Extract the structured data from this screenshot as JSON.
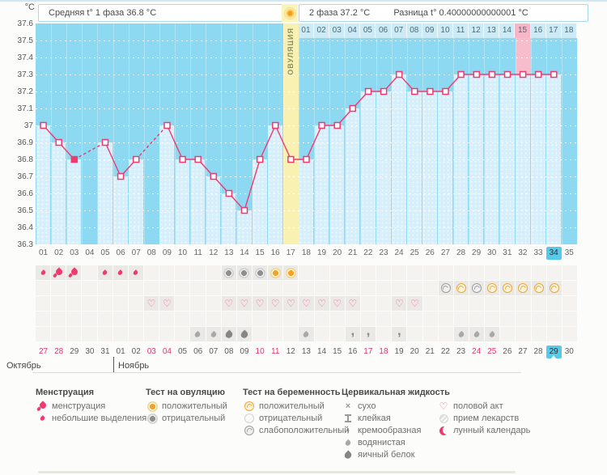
{
  "header": {
    "unit": "°C",
    "avg_phase1_label": "Средняя t° 1 фаза 36.8 °C",
    "phase2_label": "2 фаза 37.2 °C",
    "diff_label": "Разница t° 0.40000000000001 °C"
  },
  "chart_data": {
    "type": "line",
    "ylabel": "°C",
    "ylim": [
      36.3,
      37.6
    ],
    "ytick_step": 0.1,
    "yticks": [
      "37.6",
      "37.5",
      "37.4",
      "37.3",
      "37.2",
      "37.1",
      "37",
      "36.9",
      "36.8",
      "36.7",
      "36.6",
      "36.5",
      "36.4",
      "36.3"
    ],
    "grid": true,
    "x_days": [
      1,
      2,
      3,
      4,
      5,
      6,
      7,
      8,
      9,
      10,
      11,
      12,
      13,
      14,
      15,
      16,
      17,
      18,
      19,
      20,
      21,
      22,
      23,
      24,
      25,
      26,
      27,
      28,
      29,
      30,
      31,
      32,
      33,
      34,
      35
    ],
    "temps": [
      37.0,
      36.9,
      36.8,
      null,
      36.9,
      36.7,
      36.8,
      null,
      37.0,
      36.8,
      36.8,
      36.7,
      36.6,
      36.5,
      36.8,
      37.0,
      36.8,
      36.8,
      37.0,
      37.0,
      37.1,
      37.2,
      37.2,
      37.3,
      37.2,
      37.2,
      37.2,
      37.3,
      37.3,
      37.3,
      37.3,
      37.3,
      37.3,
      37.3,
      null
    ],
    "filled_marker_days": [
      3
    ],
    "ovulation": {
      "day": 17,
      "label": "ОВУЛЯЦИЯ"
    },
    "phase2": {
      "start_day": 18,
      "labels": [
        "01",
        "02",
        "03",
        "04",
        "05",
        "06",
        "07",
        "08",
        "09",
        "10",
        "11",
        "12",
        "13",
        "14",
        "15",
        "16",
        "17",
        "18"
      ],
      "highlight_label": "15"
    },
    "pink_highlight_day": 32,
    "today_day": 34,
    "colors": {
      "line": "#ee3a6e",
      "background": "#8dd9f2",
      "bar": "#d6effa",
      "ovulation_column": "#f8f1b2",
      "pink_column": "#f8bdcd",
      "today_highlight": "#57c9ea",
      "weekend_date": "#e8316b"
    }
  },
  "rows": {
    "day_numbers": [
      "01",
      "02",
      "03",
      "04",
      "05",
      "06",
      "07",
      "08",
      "09",
      "10",
      "11",
      "12",
      "13",
      "14",
      "15",
      "16",
      "17",
      "18",
      "19",
      "20",
      "21",
      "22",
      "23",
      "24",
      "25",
      "26",
      "27",
      "28",
      "29",
      "30",
      "31",
      "32",
      "33",
      "34",
      "35"
    ],
    "icon_rows": [
      {
        "name": "menstruation-and-ovulation-test-row",
        "cells": [
          {
            "day": 1,
            "icon": "m_spot"
          },
          {
            "day": 2,
            "icon": "m_menses"
          },
          {
            "day": 3,
            "icon": "m_menses"
          },
          {
            "day": 5,
            "icon": "m_spot"
          },
          {
            "day": 6,
            "icon": "m_spot"
          },
          {
            "day": 7,
            "icon": "m_spot"
          },
          {
            "day": 13,
            "icon": "ov_neg"
          },
          {
            "day": 14,
            "icon": "ov_neg"
          },
          {
            "day": 15,
            "icon": "ov_neg"
          },
          {
            "day": 16,
            "icon": "ov_pos"
          },
          {
            "day": 17,
            "icon": "ov_pos"
          }
        ]
      },
      {
        "name": "pregnancy-test-row",
        "cells": [
          {
            "day": 27,
            "icon": "pg_weak"
          },
          {
            "day": 28,
            "icon": "pg_pos"
          },
          {
            "day": 29,
            "icon": "pg_weak"
          },
          {
            "day": 30,
            "icon": "pg_pos"
          },
          {
            "day": 31,
            "icon": "pg_pos"
          },
          {
            "day": 32,
            "icon": "pg_pos"
          },
          {
            "day": 33,
            "icon": "pg_pos"
          },
          {
            "day": 34,
            "icon": "pg_pos"
          }
        ]
      },
      {
        "name": "intercourse-row",
        "cells": [
          {
            "day": 8,
            "icon": "heart"
          },
          {
            "day": 9,
            "icon": "heart"
          },
          {
            "day": 13,
            "icon": "heart"
          },
          {
            "day": 14,
            "icon": "heart"
          },
          {
            "day": 15,
            "icon": "heart"
          },
          {
            "day": 16,
            "icon": "heart"
          },
          {
            "day": 17,
            "icon": "heart"
          },
          {
            "day": 18,
            "icon": "heart"
          },
          {
            "day": 19,
            "icon": "heart"
          },
          {
            "day": 20,
            "icon": "heart"
          },
          {
            "day": 21,
            "icon": "heart"
          },
          {
            "day": 24,
            "icon": "heart"
          },
          {
            "day": 25,
            "icon": "heart"
          }
        ]
      },
      {
        "name": "empty-row",
        "cells": []
      },
      {
        "name": "cervical-fluid-row",
        "cells": [
          {
            "day": 11,
            "icon": "cf_watery"
          },
          {
            "day": 12,
            "icon": "cf_watery"
          },
          {
            "day": 13,
            "icon": "cf_egg"
          },
          {
            "day": 14,
            "icon": "cf_egg"
          },
          {
            "day": 18,
            "icon": "cf_watery"
          },
          {
            "day": 21,
            "icon": "cf_creamy"
          },
          {
            "day": 22,
            "icon": "cf_creamy"
          },
          {
            "day": 24,
            "icon": "cf_creamy"
          },
          {
            "day": 28,
            "icon": "cf_watery"
          },
          {
            "day": 29,
            "icon": "cf_watery"
          },
          {
            "day": 30,
            "icon": "cf_watery"
          }
        ]
      }
    ],
    "dates": [
      "27",
      "28",
      "29",
      "30",
      "31",
      "01",
      "02",
      "03",
      "04",
      "05",
      "06",
      "07",
      "08",
      "09",
      "10",
      "11",
      "12",
      "13",
      "14",
      "15",
      "16",
      "17",
      "18",
      "19",
      "20",
      "21",
      "22",
      "23",
      "24",
      "25",
      "26",
      "27",
      "28",
      "29",
      "30"
    ],
    "weekend_date_indices": [
      0,
      1,
      7,
      8,
      14,
      15,
      21,
      22,
      28,
      29
    ],
    "today_date_index": 33,
    "months": [
      {
        "name": "Октябрь"
      },
      {
        "name": "Ноябрь"
      }
    ]
  },
  "icon_glyphs": {
    "heart": "♡",
    "cf_dry": "×",
    "cf_creamy": ","
  },
  "legend": {
    "groups": [
      {
        "title": "Менструация",
        "items": [
          {
            "icon": "m_menses",
            "label": "менструация"
          },
          {
            "icon": "m_spot",
            "label": "небольшие выделения"
          }
        ]
      },
      {
        "title": "Тест на овуляцию",
        "items": [
          {
            "icon": "ov_pos",
            "label": "положительный"
          },
          {
            "icon": "ov_neg",
            "label": "отрицательный"
          }
        ]
      },
      {
        "title": "Тест на беременность",
        "items": [
          {
            "icon": "pg_pos",
            "label": "положительный"
          },
          {
            "icon": "pg_neg",
            "label": "отрицательный"
          },
          {
            "icon": "pg_weak",
            "label": "слабоположительный"
          }
        ]
      },
      {
        "title": "Цервикальная жидкость",
        "items": [
          {
            "icon": "cf_dry",
            "label": "сухо"
          },
          {
            "icon": "cf_sticky",
            "label": "клейкая"
          },
          {
            "icon": "cf_creamy",
            "label": "кремообразная"
          },
          {
            "icon": "cf_watery",
            "label": "водянистая"
          },
          {
            "icon": "cf_egg",
            "label": "яичный белок"
          }
        ]
      },
      {
        "title": "",
        "items": [
          {
            "icon": "heart",
            "label": "половой акт"
          },
          {
            "icon": "meds",
            "label": "прием лекарств"
          },
          {
            "icon": "moon",
            "label": "лунный календарь"
          }
        ]
      }
    ]
  }
}
